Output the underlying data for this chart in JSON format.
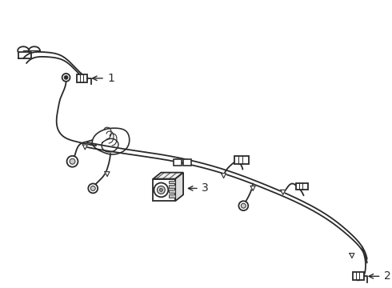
{
  "bg_color": "#ffffff",
  "line_color": "#2a2a2a",
  "label1": "1",
  "label2": "2",
  "label3": "3",
  "lw": 1.3,
  "figsize": [
    4.9,
    3.6
  ],
  "dpi": 100
}
